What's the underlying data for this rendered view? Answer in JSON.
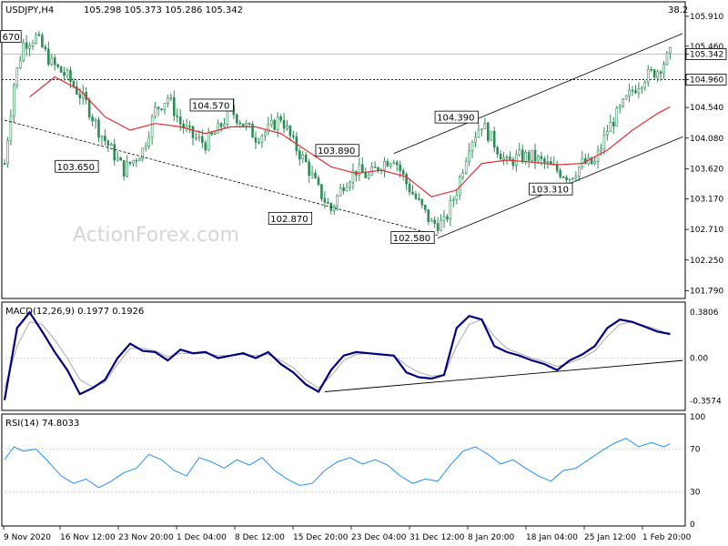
{
  "colors": {
    "candle": "#2e8b57",
    "ma": "#e03030",
    "macd": "#000080",
    "signal": "#a9a9a9",
    "rsi": "#1e90ff",
    "grid": "#c8c8c8"
  },
  "watermark": "ActionForex.com",
  "chart_data": [
    {
      "type": "candlestick",
      "title": "USDJPY,H4",
      "ohlc": "105.298 105.373 105.286 105.342",
      "corner_value": "38.2",
      "yticks": [
        "105.910",
        "105.460",
        "105.342",
        "104.960",
        "104.540",
        "104.080",
        "103.620",
        "103.170",
        "102.710",
        "102.250",
        "101.790"
      ],
      "ylim": [
        101.7,
        106.1
      ],
      "xticks": [
        "9 Nov 2020",
        "16 Nov 12:00",
        "23 Nov 20:00",
        "1 Dec 04:00",
        "8 Dec 12:00",
        "15 Dec 20:00",
        "23 Dec 04:00",
        "31 Dec 12:00",
        "8 Jan 20:00",
        "18 Jan 04:00",
        "25 Jan 12:00",
        "1 Feb 20:00"
      ],
      "close_path": [
        [
          0,
          103.7
        ],
        [
          3,
          104.9
        ],
        [
          6,
          105.5
        ],
        [
          10,
          105.6
        ],
        [
          15,
          105.2
        ],
        [
          20,
          105.0
        ],
        [
          26,
          104.6
        ],
        [
          30,
          104.2
        ],
        [
          34,
          103.9
        ],
        [
          38,
          103.6
        ],
        [
          44,
          103.9
        ],
        [
          48,
          104.5
        ],
        [
          52,
          104.7
        ],
        [
          56,
          104.3
        ],
        [
          60,
          104.1
        ],
        [
          64,
          104.0
        ],
        [
          68,
          104.2
        ],
        [
          72,
          104.5
        ],
        [
          76,
          104.3
        ],
        [
          80,
          104.1
        ],
        [
          84,
          104.2
        ],
        [
          88,
          104.4
        ],
        [
          92,
          104.0
        ],
        [
          96,
          103.7
        ],
        [
          100,
          103.3
        ],
        [
          104,
          103.0
        ],
        [
          108,
          103.4
        ],
        [
          112,
          103.6
        ],
        [
          116,
          103.5
        ],
        [
          120,
          103.7
        ],
        [
          124,
          103.8
        ],
        [
          128,
          103.4
        ],
        [
          132,
          103.1
        ],
        [
          136,
          102.8
        ],
        [
          140,
          102.8
        ],
        [
          144,
          103.3
        ],
        [
          148,
          104.0
        ],
        [
          152,
          104.3
        ],
        [
          156,
          104.0
        ],
        [
          160,
          103.7
        ],
        [
          164,
          103.8
        ],
        [
          168,
          103.8
        ],
        [
          172,
          103.7
        ],
        [
          176,
          103.6
        ],
        [
          180,
          103.5
        ],
        [
          184,
          103.7
        ],
        [
          188,
          103.7
        ],
        [
          192,
          104.2
        ],
        [
          196,
          104.5
        ],
        [
          200,
          104.8
        ],
        [
          204,
          105.0
        ],
        [
          208,
          105.1
        ],
        [
          212,
          105.34
        ]
      ],
      "ma_path": [
        [
          8,
          104.7
        ],
        [
          16,
          105.0
        ],
        [
          24,
          104.8
        ],
        [
          32,
          104.4
        ],
        [
          40,
          104.2
        ],
        [
          48,
          104.3
        ],
        [
          56,
          104.25
        ],
        [
          64,
          104.15
        ],
        [
          72,
          104.25
        ],
        [
          80,
          104.25
        ],
        [
          88,
          104.15
        ],
        [
          96,
          103.9
        ],
        [
          104,
          103.65
        ],
        [
          112,
          103.55
        ],
        [
          120,
          103.6
        ],
        [
          128,
          103.5
        ],
        [
          136,
          103.2
        ],
        [
          144,
          103.3
        ],
        [
          152,
          103.7
        ],
        [
          160,
          103.75
        ],
        [
          168,
          103.72
        ],
        [
          176,
          103.68
        ],
        [
          184,
          103.7
        ],
        [
          192,
          103.9
        ],
        [
          200,
          104.2
        ],
        [
          208,
          104.45
        ],
        [
          212,
          104.55
        ]
      ],
      "labels": [
        {
          "text": "670",
          "i": 2,
          "v": 105.6
        },
        {
          "text": "103.650",
          "i": 23,
          "v": 103.65
        },
        {
          "text": "104.570",
          "i": 66,
          "v": 104.57
        },
        {
          "text": "102.870",
          "i": 91,
          "v": 102.87
        },
        {
          "text": "103.890",
          "i": 106,
          "v": 103.89
        },
        {
          "text": "102.580",
          "i": 130,
          "v": 102.58
        },
        {
          "text": "104.390",
          "i": 144,
          "v": 104.39
        },
        {
          "text": "103.310",
          "i": 174,
          "v": 103.31
        }
      ],
      "levels": [
        104.96
      ],
      "trendlines": [
        {
          "from": [
            0,
            104.35
          ],
          "to": [
            138,
            102.62
          ]
        },
        {
          "from": [
            138,
            102.58
          ],
          "to": [
            216,
            104.1
          ]
        },
        {
          "from": [
            124,
            103.85
          ],
          "to": [
            216,
            105.65
          ]
        }
      ]
    },
    {
      "type": "line",
      "title": "MACD(12,26,9) 0.1977 0.1926",
      "yticks": [
        "0.3806",
        "0.00",
        "-0.3574"
      ],
      "ylim": [
        -0.42,
        0.45
      ],
      "macd_path": [
        [
          0,
          -0.35
        ],
        [
          4,
          0.25
        ],
        [
          8,
          0.38
        ],
        [
          12,
          0.22
        ],
        [
          16,
          0.05
        ],
        [
          20,
          -0.1
        ],
        [
          24,
          -0.3
        ],
        [
          28,
          -0.25
        ],
        [
          32,
          -0.18
        ],
        [
          36,
          0.0
        ],
        [
          40,
          0.12
        ],
        [
          44,
          0.06
        ],
        [
          48,
          0.05
        ],
        [
          52,
          -0.02
        ],
        [
          56,
          0.07
        ],
        [
          60,
          0.04
        ],
        [
          64,
          0.05
        ],
        [
          68,
          0.0
        ],
        [
          72,
          0.02
        ],
        [
          76,
          0.04
        ],
        [
          80,
          0.0
        ],
        [
          84,
          0.05
        ],
        [
          88,
          -0.05
        ],
        [
          92,
          -0.12
        ],
        [
          96,
          -0.22
        ],
        [
          100,
          -0.28
        ],
        [
          104,
          -0.1
        ],
        [
          108,
          0.02
        ],
        [
          112,
          0.05
        ],
        [
          116,
          0.04
        ],
        [
          120,
          0.03
        ],
        [
          124,
          0.02
        ],
        [
          128,
          -0.12
        ],
        [
          132,
          -0.16
        ],
        [
          136,
          -0.17
        ],
        [
          140,
          -0.14
        ],
        [
          144,
          0.25
        ],
        [
          148,
          0.35
        ],
        [
          152,
          0.32
        ],
        [
          156,
          0.1
        ],
        [
          160,
          0.05
        ],
        [
          164,
          0.02
        ],
        [
          168,
          -0.02
        ],
        [
          172,
          -0.05
        ],
        [
          176,
          -0.1
        ],
        [
          180,
          -0.02
        ],
        [
          184,
          0.03
        ],
        [
          188,
          0.1
        ],
        [
          192,
          0.25
        ],
        [
          196,
          0.32
        ],
        [
          200,
          0.3
        ],
        [
          204,
          0.26
        ],
        [
          208,
          0.22
        ],
        [
          212,
          0.2
        ]
      ],
      "signal_path": [
        [
          0,
          -0.25
        ],
        [
          4,
          0.1
        ],
        [
          8,
          0.3
        ],
        [
          12,
          0.28
        ],
        [
          16,
          0.15
        ],
        [
          20,
          0.0
        ],
        [
          24,
          -0.18
        ],
        [
          28,
          -0.24
        ],
        [
          32,
          -0.2
        ],
        [
          36,
          -0.05
        ],
        [
          40,
          0.08
        ],
        [
          44,
          0.08
        ],
        [
          48,
          0.06
        ],
        [
          52,
          0.01
        ],
        [
          56,
          0.04
        ],
        [
          60,
          0.04
        ],
        [
          64,
          0.04
        ],
        [
          68,
          0.02
        ],
        [
          72,
          0.02
        ],
        [
          76,
          0.03
        ],
        [
          80,
          0.02
        ],
        [
          84,
          0.03
        ],
        [
          88,
          -0.02
        ],
        [
          92,
          -0.08
        ],
        [
          96,
          -0.18
        ],
        [
          100,
          -0.25
        ],
        [
          104,
          -0.15
        ],
        [
          108,
          -0.02
        ],
        [
          112,
          0.03
        ],
        [
          116,
          0.04
        ],
        [
          120,
          0.03
        ],
        [
          124,
          0.02
        ],
        [
          128,
          -0.06
        ],
        [
          132,
          -0.12
        ],
        [
          136,
          -0.15
        ],
        [
          140,
          -0.14
        ],
        [
          144,
          0.1
        ],
        [
          148,
          0.28
        ],
        [
          152,
          0.32
        ],
        [
          156,
          0.18
        ],
        [
          160,
          0.08
        ],
        [
          164,
          0.04
        ],
        [
          168,
          0.0
        ],
        [
          172,
          -0.03
        ],
        [
          176,
          -0.07
        ],
        [
          180,
          -0.04
        ],
        [
          184,
          0.0
        ],
        [
          188,
          0.06
        ],
        [
          192,
          0.18
        ],
        [
          196,
          0.28
        ],
        [
          200,
          0.3
        ],
        [
          204,
          0.27
        ],
        [
          208,
          0.24
        ],
        [
          212,
          0.19
        ]
      ],
      "trendline": {
        "from": [
          102,
          -0.28
        ],
        "to": [
          216,
          -0.02
        ]
      }
    },
    {
      "type": "line",
      "title": "RSI(14) 74.8033",
      "yticks": [
        "100",
        "70",
        "30",
        "0"
      ],
      "ylim": [
        0,
        100
      ],
      "levels": [
        70,
        30
      ],
      "rsi_path": [
        [
          0,
          60
        ],
        [
          3,
          72
        ],
        [
          6,
          68
        ],
        [
          10,
          70
        ],
        [
          14,
          58
        ],
        [
          18,
          45
        ],
        [
          22,
          38
        ],
        [
          26,
          42
        ],
        [
          30,
          34
        ],
        [
          34,
          40
        ],
        [
          38,
          48
        ],
        [
          42,
          52
        ],
        [
          46,
          65
        ],
        [
          50,
          60
        ],
        [
          54,
          50
        ],
        [
          58,
          45
        ],
        [
          62,
          62
        ],
        [
          66,
          58
        ],
        [
          70,
          52
        ],
        [
          74,
          60
        ],
        [
          78,
          55
        ],
        [
          82,
          62
        ],
        [
          86,
          50
        ],
        [
          90,
          42
        ],
        [
          94,
          36
        ],
        [
          98,
          38
        ],
        [
          102,
          50
        ],
        [
          106,
          58
        ],
        [
          110,
          62
        ],
        [
          114,
          56
        ],
        [
          118,
          60
        ],
        [
          122,
          55
        ],
        [
          126,
          45
        ],
        [
          130,
          38
        ],
        [
          134,
          42
        ],
        [
          138,
          40
        ],
        [
          142,
          55
        ],
        [
          146,
          68
        ],
        [
          150,
          72
        ],
        [
          154,
          65
        ],
        [
          158,
          56
        ],
        [
          162,
          60
        ],
        [
          166,
          52
        ],
        [
          170,
          45
        ],
        [
          174,
          40
        ],
        [
          178,
          50
        ],
        [
          182,
          52
        ],
        [
          186,
          60
        ],
        [
          190,
          68
        ],
        [
          194,
          75
        ],
        [
          198,
          80
        ],
        [
          202,
          72
        ],
        [
          206,
          76
        ],
        [
          210,
          72
        ],
        [
          212,
          74.8
        ]
      ]
    }
  ]
}
